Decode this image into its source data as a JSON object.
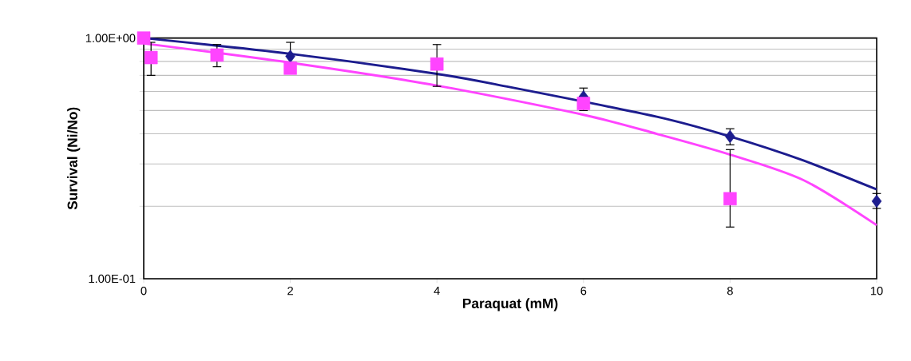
{
  "chart_data": {
    "type": "scatter",
    "xlabel": "Paraquat (mM)",
    "ylabel": "Survival (Ni/No)",
    "log": "y",
    "xlim": [
      0,
      10
    ],
    "xticks": [
      0,
      2,
      4,
      6,
      8,
      10
    ],
    "ylim": [
      0.1,
      1
    ],
    "yticks": [
      {
        "value": 0.1,
        "label": "1.00E-01"
      },
      {
        "value": 0.2,
        "label": null
      },
      {
        "value": 0.3,
        "label": null
      },
      {
        "value": 0.4,
        "label": null
      },
      {
        "value": 0.5,
        "label": null
      },
      {
        "value": 0.6,
        "label": null
      },
      {
        "value": 0.7,
        "label": null
      },
      {
        "value": 0.8,
        "label": null
      },
      {
        "value": 0.9,
        "label": null
      },
      {
        "value": 1,
        "label": "1.00E+00"
      }
    ],
    "grid": "y",
    "series": [
      {
        "type": "line",
        "color": "#1c1c8e",
        "marker": "none",
        "x": [
          0,
          2,
          4,
          5,
          7,
          8,
          9,
          10
        ],
        "values": [
          1.0,
          0.86,
          0.71,
          0.625,
          0.471,
          0.39,
          0.31,
          0.235
        ]
      },
      {
        "type": "line",
        "color": "#ff44ff",
        "marker": "none",
        "x": [
          0,
          2,
          4,
          6,
          7,
          8,
          9,
          10
        ],
        "values": [
          0.95,
          0.79,
          0.635,
          0.48,
          0.4,
          0.328,
          0.257,
          0.167
        ]
      },
      {
        "color": "#1c1c8e",
        "marker": "diamond",
        "x": [
          2,
          6,
          8,
          10
        ],
        "values": [
          0.84,
          0.57,
          0.39,
          0.21
        ],
        "errors": [
          [
            0.72,
            0.96
          ],
          [
            0.57,
            0.62
          ],
          [
            0.36,
            0.42
          ],
          [
            0.196,
            0.226
          ]
        ]
      },
      {
        "color": "#ff44ff",
        "marker": "square",
        "x": [
          0,
          0.1,
          1,
          2,
          4,
          6,
          8
        ],
        "values": [
          1.0,
          0.83,
          0.85,
          0.75,
          0.78,
          0.535,
          0.215
        ],
        "errors": [
          null,
          [
            0.7,
            0.96
          ],
          [
            0.76,
            0.94
          ],
          null,
          [
            0.63,
            0.94
          ],
          [
            0.5,
            0.57
          ],
          [
            0.164,
            0.344
          ]
        ]
      }
    ]
  }
}
